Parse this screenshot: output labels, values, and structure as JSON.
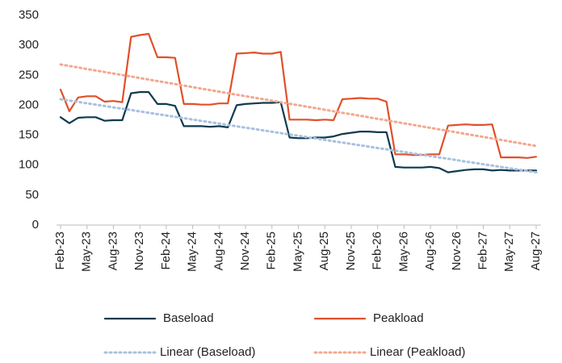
{
  "chart_data": {
    "type": "line",
    "categories": [
      "Feb-23",
      null,
      null,
      "May-23",
      null,
      null,
      "Aug-23",
      null,
      null,
      "Nov-23",
      null,
      null,
      "Feb-24",
      null,
      null,
      "May-24",
      null,
      null,
      "Aug-24",
      null,
      null,
      "Nov-24",
      null,
      null,
      "Feb-25",
      null,
      null,
      "May-25",
      null,
      null,
      "Aug-25",
      null,
      null,
      "Nov-25",
      null,
      null,
      "Feb-26",
      null,
      null,
      "May-26",
      null,
      null,
      "Aug-26",
      null,
      null,
      "Nov-26",
      null,
      null,
      "Feb-27",
      null,
      null,
      "May-27",
      null,
      null,
      "Aug-27"
    ],
    "series": [
      {
        "name": "Baseload",
        "color": "#0e3a4f",
        "dash": "solid",
        "values": [
          180,
          170,
          179,
          180,
          180,
          174,
          175,
          175,
          220,
          222,
          222,
          202,
          202,
          199,
          165,
          165,
          165,
          164,
          165,
          163,
          200,
          202,
          203,
          204,
          204,
          205,
          146,
          145,
          145,
          146,
          146,
          148,
          152,
          154,
          156,
          156,
          155,
          155,
          97,
          96,
          96,
          96,
          97,
          95,
          88,
          90,
          92,
          93,
          93,
          91,
          92,
          91,
          91,
          91,
          91
        ]
      },
      {
        "name": "Peakload",
        "color": "#e0502a",
        "dash": "solid",
        "values": [
          226,
          190,
          213,
          215,
          215,
          206,
          207,
          205,
          314,
          317,
          319,
          280,
          280,
          279,
          202,
          202,
          201,
          201,
          203,
          203,
          286,
          287,
          288,
          286,
          286,
          289,
          176,
          176,
          176,
          175,
          176,
          175,
          210,
          211,
          212,
          211,
          211,
          206,
          118,
          118,
          117,
          117,
          118,
          118,
          166,
          167,
          168,
          167,
          167,
          168,
          113,
          113,
          113,
          112,
          114
        ]
      },
      {
        "name": "Linear (Baseload)",
        "color": "#a9c0e0",
        "dash": "dotted",
        "values": [
          210,
          207.7,
          205.5,
          203.2,
          201,
          198.7,
          196.4,
          194.2,
          191.9,
          189.7,
          187.4,
          185.1,
          182.9,
          180.6,
          178.4,
          176.1,
          173.8,
          171.6,
          169.3,
          167.1,
          164.8,
          162.5,
          160.3,
          158,
          155.8,
          153.5,
          151.2,
          149,
          146.7,
          144.5,
          142.2,
          139.9,
          137.7,
          135.4,
          133.2,
          130.9,
          128.6,
          126.4,
          124.1,
          121.9,
          119.6,
          117.3,
          115.1,
          112.8,
          110.6,
          108.3,
          106,
          103.8,
          101.5,
          99.3,
          97,
          94.7,
          92.5,
          90.2,
          88
        ]
      },
      {
        "name": "Linear (Peakload)",
        "color": "#f2a88f",
        "dash": "dotted",
        "values": [
          268,
          265.5,
          263,
          260.4,
          257.9,
          255.4,
          252.9,
          250.4,
          247.9,
          245.3,
          242.8,
          240.3,
          237.8,
          235.3,
          232.7,
          230.2,
          227.7,
          225.2,
          222.7,
          220.1,
          217.6,
          215.1,
          212.6,
          210.1,
          207.6,
          205,
          202.5,
          200,
          197.5,
          195,
          192.4,
          189.9,
          187.4,
          184.9,
          182.4,
          179.9,
          177.3,
          174.8,
          172.3,
          169.8,
          167.3,
          164.7,
          162.2,
          159.7,
          157.2,
          154.7,
          152.1,
          149.6,
          147.1,
          144.6,
          142.1,
          139.6,
          137,
          134.5,
          132
        ]
      }
    ],
    "ylim": [
      0,
      350
    ],
    "yticks": [
      0,
      50,
      100,
      150,
      200,
      250,
      300,
      350
    ],
    "grid": false,
    "legend": "bottom"
  }
}
